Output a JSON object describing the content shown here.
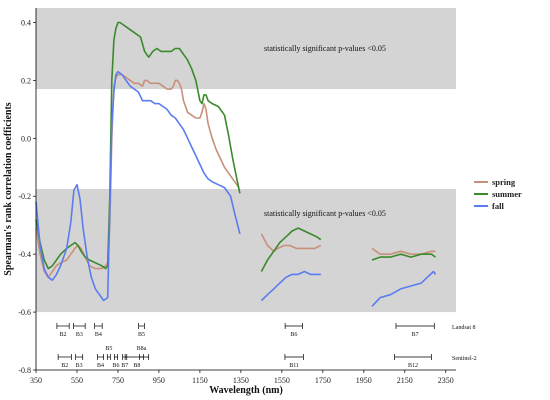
{
  "chart_data": {
    "type": "line",
    "xlabel": "Wavelength (nm)",
    "ylabel": "Spearman's rank correlation coefficients",
    "xlim": [
      350,
      2400
    ],
    "ylim": [
      -0.8,
      0.45
    ],
    "x_ticks": [
      350,
      550,
      750,
      950,
      1150,
      1350,
      1550,
      1750,
      1950,
      2150,
      2350
    ],
    "y_ticks": [
      -0.8,
      -0.6,
      -0.4,
      -0.2,
      0.0,
      0.2,
      0.4
    ],
    "significant_regions": [
      {
        "y_range": [
          0.17,
          0.45
        ],
        "label": "statistically significant p-values <0.05"
      },
      {
        "y_range": [
          -0.6,
          -0.175
        ],
        "label": "statistically significant p-values <0.05"
      }
    ],
    "legend": {
      "position": "right",
      "entries": [
        "spring",
        "summer",
        "fall"
      ]
    },
    "series": [
      {
        "name": "spring",
        "color": "#c8907a",
        "segments": [
          [
            [
              350,
              -0.31
            ],
            [
              370,
              -0.4
            ],
            [
              390,
              -0.46
            ],
            [
              410,
              -0.48
            ],
            [
              430,
              -0.46
            ],
            [
              450,
              -0.44
            ],
            [
              470,
              -0.43
            ],
            [
              500,
              -0.42
            ],
            [
              520,
              -0.4
            ],
            [
              540,
              -0.38
            ],
            [
              555,
              -0.37
            ],
            [
              570,
              -0.38
            ],
            [
              590,
              -0.41
            ],
            [
              610,
              -0.44
            ],
            [
              640,
              -0.45
            ],
            [
              670,
              -0.45
            ],
            [
              690,
              -0.44
            ],
            [
              700,
              -0.43
            ],
            [
              710,
              -0.3
            ],
            [
              720,
              0.0
            ],
            [
              730,
              0.18
            ],
            [
              740,
              0.21
            ],
            [
              750,
              0.22
            ],
            [
              770,
              0.22
            ],
            [
              790,
              0.21
            ],
            [
              810,
              0.2
            ],
            [
              830,
              0.19
            ],
            [
              850,
              0.19
            ],
            [
              870,
              0.18
            ],
            [
              880,
              0.2
            ],
            [
              890,
              0.2
            ],
            [
              910,
              0.19
            ],
            [
              930,
              0.19
            ],
            [
              950,
              0.19
            ],
            [
              970,
              0.18
            ],
            [
              990,
              0.17
            ],
            [
              1010,
              0.17
            ],
            [
              1020,
              0.18
            ],
            [
              1030,
              0.2
            ],
            [
              1040,
              0.2
            ],
            [
              1050,
              0.19
            ],
            [
              1060,
              0.17
            ],
            [
              1070,
              0.13
            ],
            [
              1090,
              0.09
            ],
            [
              1110,
              0.08
            ],
            [
              1130,
              0.07
            ],
            [
              1150,
              0.07
            ],
            [
              1160,
              0.09
            ],
            [
              1170,
              0.12
            ],
            [
              1180,
              0.1
            ],
            [
              1190,
              0.05
            ],
            [
              1210,
              0.0
            ],
            [
              1230,
              -0.04
            ],
            [
              1250,
              -0.07
            ],
            [
              1270,
              -0.1
            ],
            [
              1290,
              -0.12
            ],
            [
              1310,
              -0.14
            ],
            [
              1330,
              -0.16
            ],
            [
              1340,
              -0.17
            ]
          ],
          [
            [
              1450,
              -0.33
            ],
            [
              1480,
              -0.37
            ],
            [
              1510,
              -0.39
            ],
            [
              1530,
              -0.38
            ],
            [
              1560,
              -0.37
            ],
            [
              1590,
              -0.37
            ],
            [
              1620,
              -0.38
            ],
            [
              1650,
              -0.38
            ],
            [
              1680,
              -0.38
            ],
            [
              1710,
              -0.38
            ],
            [
              1740,
              -0.37
            ]
          ],
          [
            [
              1990,
              -0.38
            ],
            [
              2030,
              -0.4
            ],
            [
              2080,
              -0.4
            ],
            [
              2130,
              -0.39
            ],
            [
              2180,
              -0.4
            ],
            [
              2230,
              -0.4
            ],
            [
              2280,
              -0.39
            ],
            [
              2300,
              -0.39
            ]
          ]
        ]
      },
      {
        "name": "summer",
        "color": "#3a8a2c",
        "segments": [
          [
            [
              350,
              -0.28
            ],
            [
              370,
              -0.36
            ],
            [
              390,
              -0.42
            ],
            [
              410,
              -0.45
            ],
            [
              430,
              -0.44
            ],
            [
              450,
              -0.42
            ],
            [
              470,
              -0.4
            ],
            [
              500,
              -0.38
            ],
            [
              520,
              -0.37
            ],
            [
              540,
              -0.36
            ],
            [
              555,
              -0.37
            ],
            [
              570,
              -0.39
            ],
            [
              590,
              -0.41
            ],
            [
              610,
              -0.42
            ],
            [
              640,
              -0.43
            ],
            [
              670,
              -0.44
            ],
            [
              690,
              -0.45
            ],
            [
              700,
              -0.44
            ],
            [
              710,
              -0.2
            ],
            [
              720,
              0.2
            ],
            [
              730,
              0.34
            ],
            [
              740,
              0.38
            ],
            [
              750,
              0.4
            ],
            [
              760,
              0.4
            ],
            [
              780,
              0.39
            ],
            [
              800,
              0.38
            ],
            [
              820,
              0.37
            ],
            [
              840,
              0.36
            ],
            [
              860,
              0.35
            ],
            [
              880,
              0.3
            ],
            [
              900,
              0.28
            ],
            [
              920,
              0.3
            ],
            [
              940,
              0.31
            ],
            [
              960,
              0.3
            ],
            [
              990,
              0.3
            ],
            [
              1010,
              0.3
            ],
            [
              1030,
              0.31
            ],
            [
              1050,
              0.31
            ],
            [
              1070,
              0.29
            ],
            [
              1090,
              0.27
            ],
            [
              1110,
              0.24
            ],
            [
              1130,
              0.2
            ],
            [
              1150,
              0.13
            ],
            [
              1160,
              0.12
            ],
            [
              1170,
              0.15
            ],
            [
              1180,
              0.15
            ],
            [
              1190,
              0.13
            ],
            [
              1210,
              0.12
            ],
            [
              1240,
              0.11
            ],
            [
              1270,
              0.08
            ],
            [
              1290,
              0.01
            ],
            [
              1310,
              -0.07
            ],
            [
              1330,
              -0.14
            ],
            [
              1345,
              -0.19
            ]
          ],
          [
            [
              1450,
              -0.46
            ],
            [
              1480,
              -0.42
            ],
            [
              1510,
              -0.39
            ],
            [
              1540,
              -0.36
            ],
            [
              1570,
              -0.34
            ],
            [
              1600,
              -0.32
            ],
            [
              1630,
              -0.31
            ],
            [
              1660,
              -0.32
            ],
            [
              1690,
              -0.33
            ],
            [
              1720,
              -0.34
            ],
            [
              1740,
              -0.35
            ]
          ],
          [
            [
              1990,
              -0.42
            ],
            [
              2030,
              -0.41
            ],
            [
              2080,
              -0.41
            ],
            [
              2130,
              -0.4
            ],
            [
              2180,
              -0.41
            ],
            [
              2230,
              -0.4
            ],
            [
              2280,
              -0.4
            ],
            [
              2300,
              -0.41
            ]
          ]
        ]
      },
      {
        "name": "fall",
        "color": "#5b7cf0",
        "segments": [
          [
            [
              350,
              -0.22
            ],
            [
              370,
              -0.37
            ],
            [
              390,
              -0.45
            ],
            [
              410,
              -0.48
            ],
            [
              430,
              -0.49
            ],
            [
              450,
              -0.47
            ],
            [
              470,
              -0.44
            ],
            [
              500,
              -0.38
            ],
            [
              520,
              -0.29
            ],
            [
              535,
              -0.18
            ],
            [
              550,
              -0.16
            ],
            [
              565,
              -0.21
            ],
            [
              580,
              -0.31
            ],
            [
              600,
              -0.41
            ],
            [
              620,
              -0.48
            ],
            [
              640,
              -0.52
            ],
            [
              660,
              -0.54
            ],
            [
              680,
              -0.56
            ],
            [
              700,
              -0.55
            ],
            [
              710,
              -0.25
            ],
            [
              720,
              0.05
            ],
            [
              730,
              0.16
            ],
            [
              740,
              0.22
            ],
            [
              750,
              0.23
            ],
            [
              770,
              0.22
            ],
            [
              790,
              0.2
            ],
            [
              810,
              0.18
            ],
            [
              830,
              0.17
            ],
            [
              850,
              0.16
            ],
            [
              870,
              0.13
            ],
            [
              890,
              0.13
            ],
            [
              910,
              0.13
            ],
            [
              930,
              0.12
            ],
            [
              950,
              0.12
            ],
            [
              970,
              0.11
            ],
            [
              990,
              0.1
            ],
            [
              1010,
              0.08
            ],
            [
              1030,
              0.07
            ],
            [
              1050,
              0.05
            ],
            [
              1070,
              0.03
            ],
            [
              1090,
              0.0
            ],
            [
              1110,
              -0.03
            ],
            [
              1130,
              -0.06
            ],
            [
              1150,
              -0.09
            ],
            [
              1170,
              -0.12
            ],
            [
              1190,
              -0.14
            ],
            [
              1210,
              -0.15
            ],
            [
              1240,
              -0.16
            ],
            [
              1270,
              -0.17
            ],
            [
              1300,
              -0.2
            ],
            [
              1320,
              -0.26
            ],
            [
              1345,
              -0.33
            ]
          ],
          [
            [
              1450,
              -0.56
            ],
            [
              1480,
              -0.54
            ],
            [
              1510,
              -0.52
            ],
            [
              1540,
              -0.5
            ],
            [
              1570,
              -0.48
            ],
            [
              1600,
              -0.47
            ],
            [
              1630,
              -0.47
            ],
            [
              1660,
              -0.46
            ],
            [
              1690,
              -0.47
            ],
            [
              1720,
              -0.47
            ],
            [
              1740,
              -0.47
            ]
          ],
          [
            [
              1990,
              -0.58
            ],
            [
              2030,
              -0.55
            ],
            [
              2080,
              -0.54
            ],
            [
              2130,
              -0.52
            ],
            [
              2180,
              -0.51
            ],
            [
              2230,
              -0.5
            ],
            [
              2260,
              -0.48
            ],
            [
              2290,
              -0.46
            ],
            [
              2300,
              -0.47
            ]
          ]
        ]
      }
    ],
    "sensors": [
      {
        "name": "Landsat 8",
        "bands": [
          {
            "label": "B2",
            "range": [
              452,
              512
            ]
          },
          {
            "label": "B3",
            "range": [
              533,
              590
            ]
          },
          {
            "label": "B4",
            "range": [
              636,
              673
            ]
          },
          {
            "label": "B5",
            "range": [
              851,
              879
            ]
          },
          {
            "label": "B6",
            "range": [
              1566,
              1651
            ]
          },
          {
            "label": "B7",
            "range": [
              2107,
              2294
            ]
          }
        ]
      },
      {
        "name": "Sentinel-2",
        "bands": [
          {
            "label": "B2",
            "range": [
              458,
              523
            ]
          },
          {
            "label": "B3",
            "range": [
              543,
              578
            ]
          },
          {
            "label": "B4",
            "range": [
              650,
              680
            ]
          },
          {
            "label": "B5",
            "range": [
              698,
              713
            ],
            "above": true
          },
          {
            "label": "B6",
            "range": [
              733,
              748
            ]
          },
          {
            "label": "B7",
            "range": [
              773,
              793
            ]
          },
          {
            "label": "B8",
            "range": [
              785,
              900
            ]
          },
          {
            "label": "B8a",
            "range": [
              855,
              875
            ],
            "above": true
          },
          {
            "label": "B11",
            "range": [
              1565,
              1655
            ]
          },
          {
            "label": "B12",
            "range": [
              2100,
              2280
            ]
          }
        ]
      }
    ]
  }
}
